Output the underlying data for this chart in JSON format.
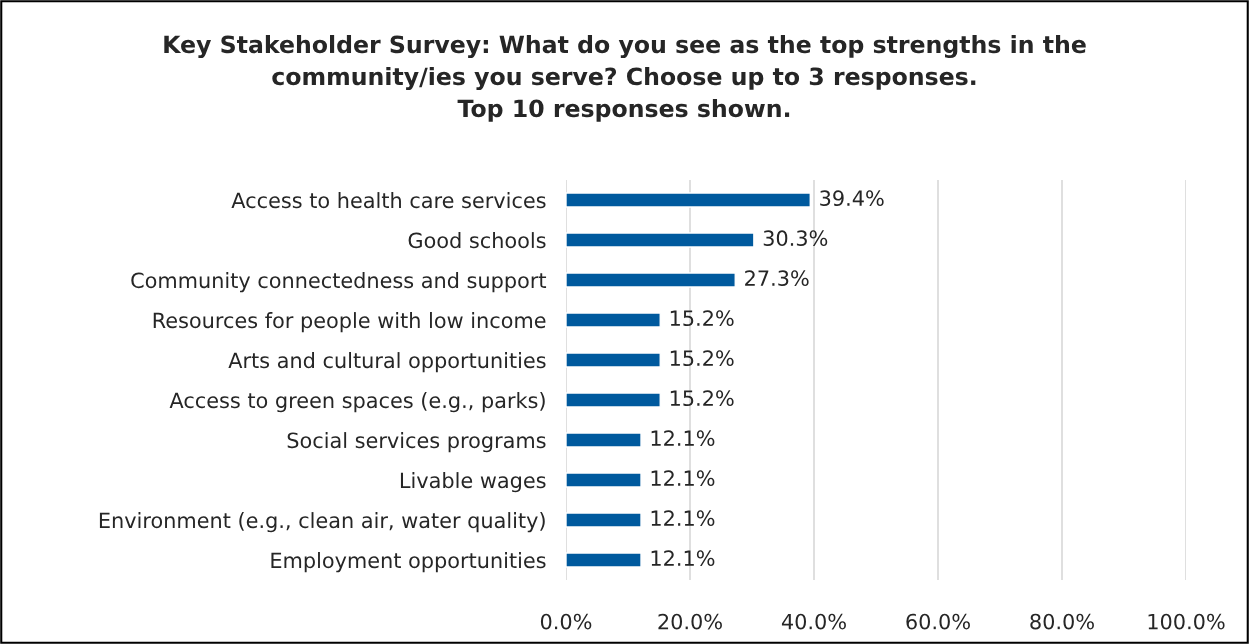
{
  "chart_data": {
    "type": "bar",
    "orientation": "horizontal",
    "title": "Key Stakeholder Survey: What do you see as the top strengths in the\ncommunity/ies you serve? Choose up to 3 responses.\nTop 10 responses shown.",
    "categories": [
      "Access to health care services",
      "Good schools",
      "Community connectedness and support",
      "Resources for people with low income",
      "Arts and cultural opportunities",
      "Access to green spaces (e.g., parks)",
      "Social services programs",
      "Livable wages",
      "Environment (e.g., clean air, water quality)",
      "Employment opportunities"
    ],
    "values": [
      39.4,
      30.3,
      27.3,
      15.2,
      15.2,
      15.2,
      12.1,
      12.1,
      12.1,
      12.1
    ],
    "value_labels": [
      "39.4%",
      "30.3%",
      "27.3%",
      "15.2%",
      "15.2%",
      "15.2%",
      "12.1%",
      "12.1%",
      "12.1%",
      "12.1%"
    ],
    "color": "#005a9e",
    "xlim": [
      0,
      100
    ],
    "xticks": [
      {
        "value": 0,
        "label": "0.0%"
      },
      {
        "value": 20,
        "label": "20.0%"
      },
      {
        "value": 40,
        "label": "40.0%"
      },
      {
        "value": 60,
        "label": "60.0%"
      },
      {
        "value": 80,
        "label": "80.0%"
      },
      {
        "value": 100,
        "label": "100.0%"
      }
    ],
    "grid": "x",
    "legend": false
  }
}
